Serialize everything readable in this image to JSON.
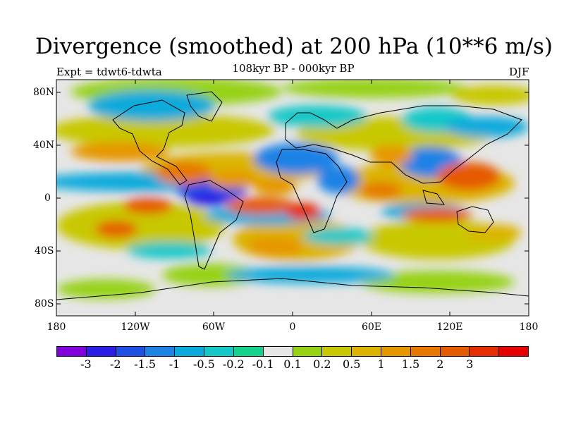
{
  "title": "Divergence (smoothed) at 200 hPa (10**6 m/s)",
  "subtitle": "108kyr BP - 000kyr BP",
  "experiment": "Expt = tdwt6-tdwta",
  "season": "DJF",
  "lat_labels": [
    "80N",
    "40N",
    "0",
    "40S",
    "80S"
  ],
  "lon_labels": [
    "180",
    "120W",
    "60W",
    "0",
    "60E",
    "120E",
    "180"
  ],
  "colorbar": {
    "colors": [
      "#8200dc",
      "#2d1ee6",
      "#1e50e6",
      "#1e82e6",
      "#0aaadc",
      "#14c8c8",
      "#14d28c",
      "#e6e6e6",
      "#96d214",
      "#c8c800",
      "#dcb400",
      "#e69600",
      "#e67800",
      "#e65a00",
      "#e62d00",
      "#e60000"
    ],
    "labels": [
      "-3",
      "-2",
      "-1.5",
      "-1",
      "-0.5",
      "-0.2",
      "-0.1",
      "0.1",
      "0.2",
      "0.5",
      "1",
      "1.5",
      "2",
      "3"
    ]
  },
  "colors": {
    "neutral": "#e6e6e6",
    "coast": "#000000"
  }
}
